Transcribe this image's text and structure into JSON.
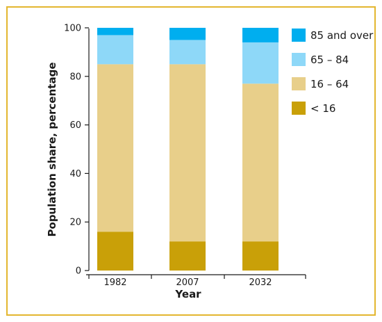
{
  "chart_data": {
    "type": "bar",
    "stacked": true,
    "title": "",
    "xlabel": "Year",
    "ylabel": "Population share, percentage",
    "ylim": [
      0,
      100
    ],
    "yticks": [
      0,
      20,
      40,
      60,
      80,
      100
    ],
    "categories": [
      "1982",
      "2007",
      "2032"
    ],
    "series": [
      {
        "name": "< 16",
        "color": "#c9a008",
        "values": [
          16,
          12,
          12
        ]
      },
      {
        "name": "16 – 64",
        "color": "#e8cf8a",
        "values": [
          69,
          73,
          65
        ]
      },
      {
        "name": "65 – 84",
        "color": "#8ed8f8",
        "values": [
          12,
          10,
          17
        ]
      },
      {
        "name": "85 and over",
        "color": "#00aeef",
        "values": [
          3,
          5,
          6
        ]
      }
    ],
    "legend": {
      "position": "right",
      "order": [
        "85 and over",
        "65 – 84",
        "16 – 64",
        "< 16"
      ]
    },
    "grid": false,
    "frame_color": "#e3b62f"
  }
}
